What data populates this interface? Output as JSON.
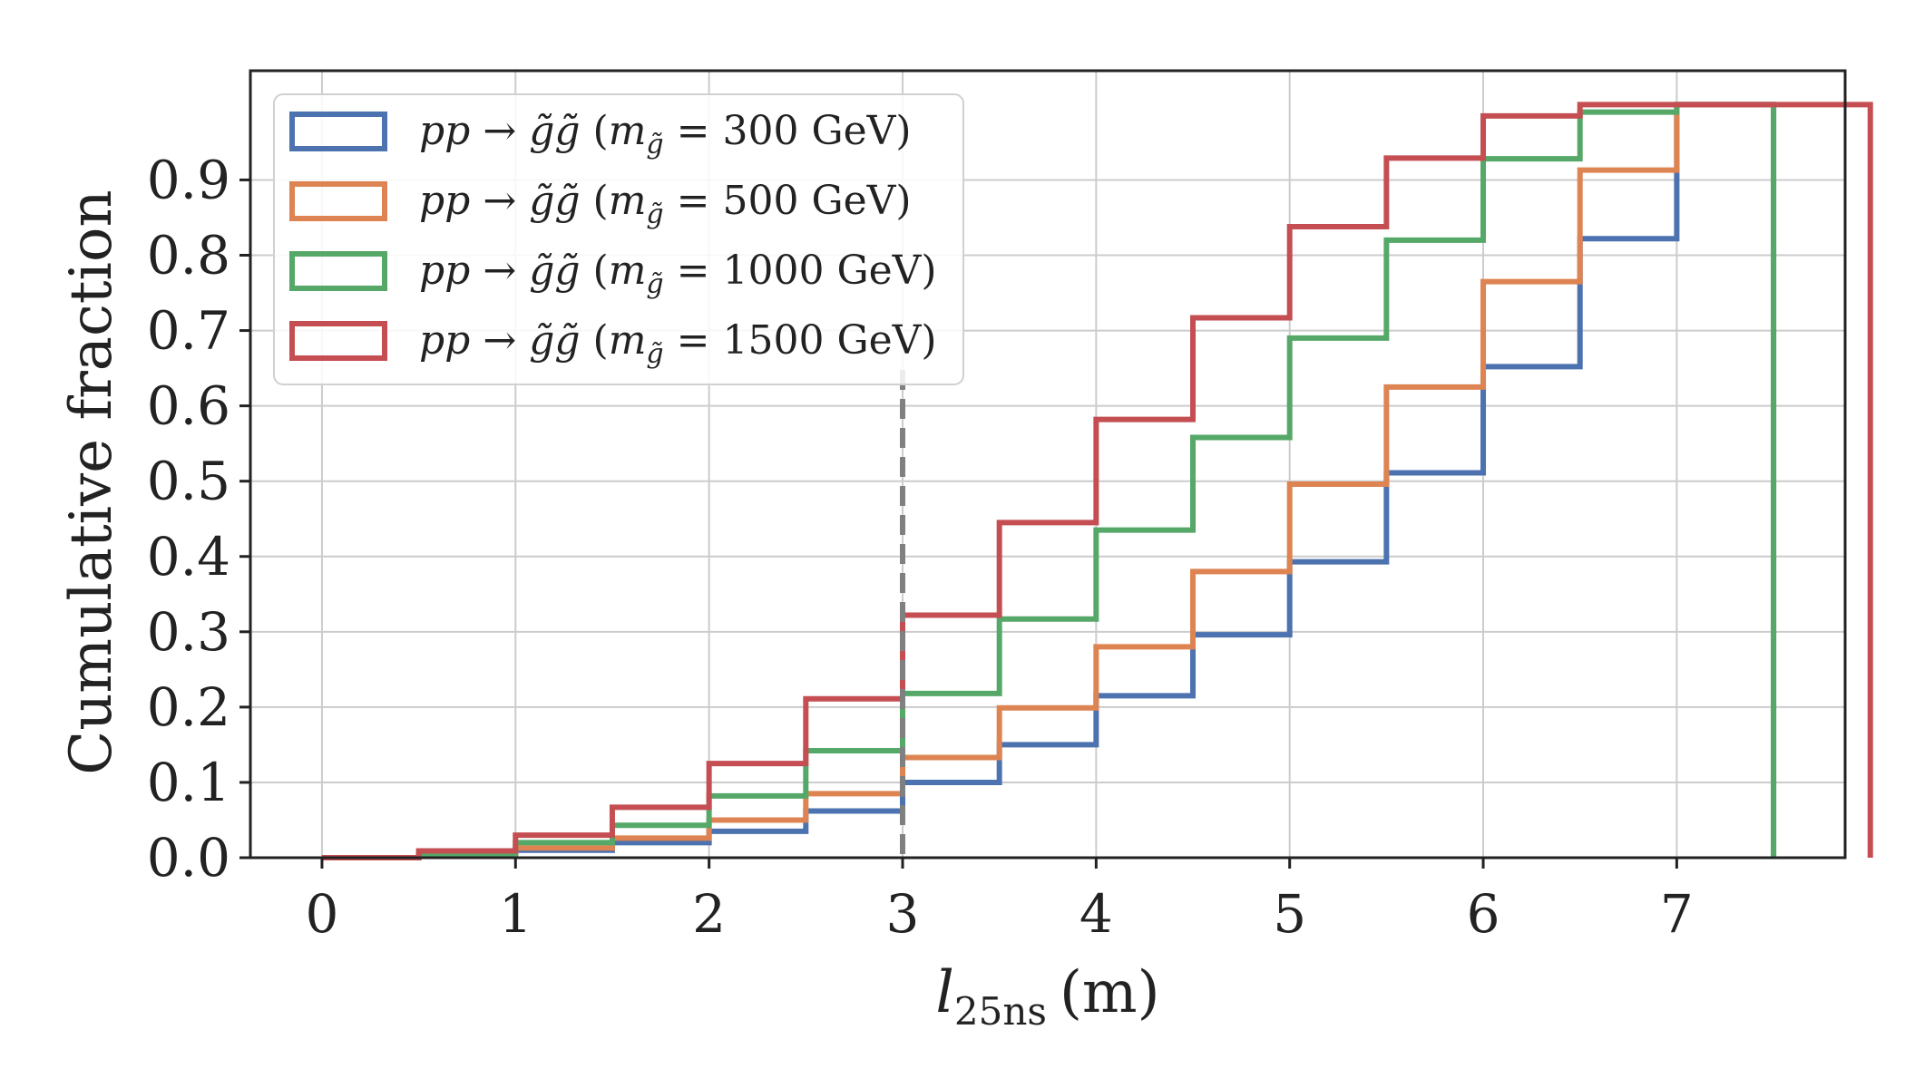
{
  "chart_data": {
    "type": "step",
    "xlabel": "l25ns (m)",
    "xlabel_main": "l",
    "xlabel_sub": "25ns",
    "xlabel_unit": "(m)",
    "ylabel": "Cumulative fraction",
    "xlim": [
      -0.37,
      7.87
    ],
    "ylim": [
      0.0,
      1.045
    ],
    "x_ticks": [
      "0",
      "1",
      "2",
      "3",
      "4",
      "5",
      "6",
      "7"
    ],
    "y_ticks": [
      "0.0",
      "0.1",
      "0.2",
      "0.3",
      "0.4",
      "0.5",
      "0.6",
      "0.7",
      "0.8",
      "0.9"
    ],
    "grid": true,
    "legend_position": "upper-left",
    "vline": {
      "x": 3.0,
      "style": "dashed",
      "color": "#808080"
    },
    "bin_edges": [
      0,
      0.5,
      1,
      1.5,
      2,
      2.5,
      3,
      3.5,
      4,
      4.5,
      5,
      5.5,
      6,
      6.5,
      7
    ],
    "series": [
      {
        "name": "pp → g̃g̃ (mg̃ = 300 GeV)",
        "mass_label": "300 GeV",
        "color": "#4c72b0",
        "values": [
          0.0,
          0.003,
          0.01,
          0.02,
          0.035,
          0.062,
          0.1,
          0.15,
          0.215,
          0.296,
          0.393,
          0.511,
          0.652,
          0.822,
          1.0
        ]
      },
      {
        "name": "pp → g̃g̃ (mg̃ = 500 GeV)",
        "mass_label": "500 GeV",
        "color": "#dd8452",
        "values": [
          0.0,
          0.004,
          0.013,
          0.026,
          0.05,
          0.085,
          0.133,
          0.199,
          0.28,
          0.38,
          0.496,
          0.625,
          0.765,
          0.913,
          1.0
        ]
      },
      {
        "name": "pp → g̃g̃ (mg̃ = 1000 GeV)",
        "mass_label": "1000 GeV",
        "color": "#55a868",
        "values": [
          0.0,
          0.005,
          0.02,
          0.043,
          0.082,
          0.142,
          0.218,
          0.317,
          0.435,
          0.558,
          0.69,
          0.82,
          0.928,
          0.99,
          1.0
        ]
      },
      {
        "name": "pp → g̃g̃ (mg̃ = 1500 GeV)",
        "mass_label": "1500 GeV",
        "color": "#c44e52",
        "values": [
          0.0,
          0.009,
          0.03,
          0.067,
          0.125,
          0.211,
          0.322,
          0.445,
          0.582,
          0.717,
          0.838,
          0.929,
          0.985,
          1.0,
          1.0,
          1.0
        ]
      }
    ],
    "series_1500_edges": [
      0,
      0.5,
      1,
      1.5,
      2,
      2.5,
      3,
      3.5,
      4,
      4.5,
      5,
      5.5,
      6,
      6.5,
      7,
      7.5
    ]
  }
}
